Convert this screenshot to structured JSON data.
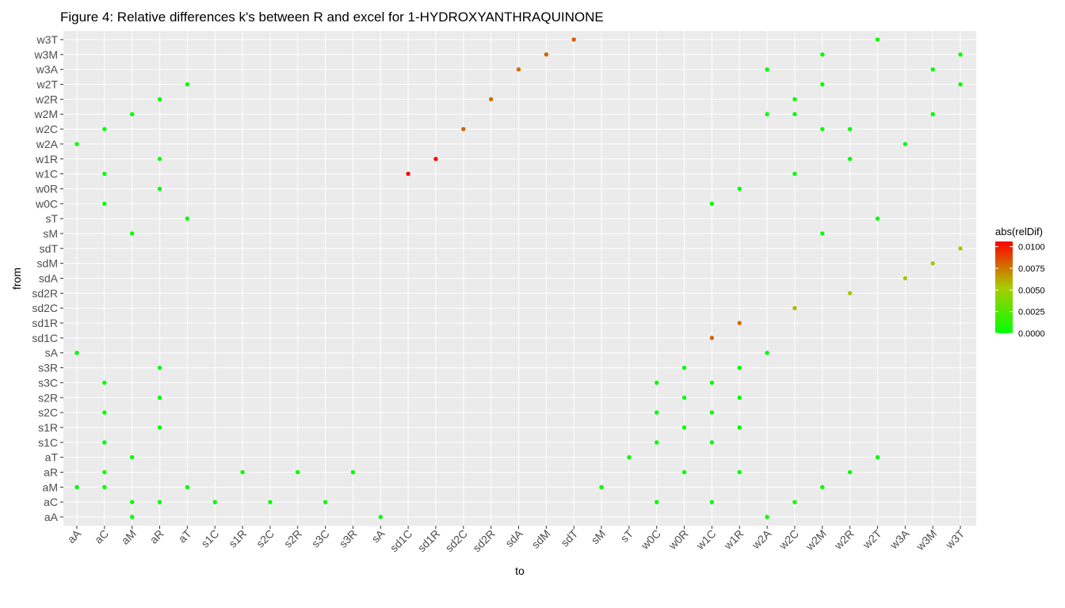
{
  "chart_data": {
    "type": "scatter",
    "title": "Figure 4: Relative differences k's between R and excel for 1-HYDROXYANTHRAQUINONE",
    "xlabel": "to",
    "ylabel": "from",
    "x_categories": [
      "aA",
      "aC",
      "aM",
      "aR",
      "aT",
      "s1C",
      "s1R",
      "s2C",
      "s2R",
      "s3C",
      "s3R",
      "sA",
      "sd1C",
      "sd1R",
      "sd2C",
      "sd2R",
      "sdA",
      "sdM",
      "sdT",
      "sM",
      "sT",
      "w0C",
      "w0R",
      "w1C",
      "w1R",
      "w2A",
      "w2C",
      "w2M",
      "w2R",
      "w2T",
      "w3A",
      "w3M",
      "w3T"
    ],
    "y_categories": [
      "aA",
      "aC",
      "aM",
      "aR",
      "aT",
      "s1C",
      "s1R",
      "s2C",
      "s2R",
      "s3C",
      "s3R",
      "sA",
      "sd1C",
      "sd1R",
      "sd2C",
      "sd2R",
      "sdA",
      "sdM",
      "sdT",
      "sM",
      "sT",
      "w0C",
      "w0R",
      "w1C",
      "w1R",
      "w2A",
      "w2C",
      "w2M",
      "w2R",
      "w2T",
      "w3A",
      "w3M",
      "w3T"
    ],
    "grid": true,
    "legend": {
      "title": "abs(relDif)",
      "position": "right",
      "ticks": [
        "0.0000",
        "0.0025",
        "0.0050",
        "0.0075",
        "0.0100"
      ],
      "tick_values": [
        0,
        0.0025,
        0.005,
        0.0075,
        0.01
      ],
      "range": [
        0,
        0.0106
      ],
      "low_color": "#00ff00",
      "mid_color": "#aacc00",
      "high_color": "#ff0000"
    },
    "points": [
      {
        "from": "w3T",
        "to": "sdT",
        "v": 0.0082
      },
      {
        "from": "w3T",
        "to": "w2T",
        "v": 0
      },
      {
        "from": "w3M",
        "to": "sdM",
        "v": 0.008
      },
      {
        "from": "w3M",
        "to": "w2M",
        "v": 0
      },
      {
        "from": "w3M",
        "to": "w3T",
        "v": 0
      },
      {
        "from": "w3A",
        "to": "sdA",
        "v": 0.0078
      },
      {
        "from": "w3A",
        "to": "w2A",
        "v": 0
      },
      {
        "from": "w3A",
        "to": "w3M",
        "v": 0
      },
      {
        "from": "w2T",
        "to": "aT",
        "v": 0
      },
      {
        "from": "w2T",
        "to": "w2M",
        "v": 0
      },
      {
        "from": "w2T",
        "to": "w3T",
        "v": 0
      },
      {
        "from": "w2R",
        "to": "aR",
        "v": 0
      },
      {
        "from": "w2R",
        "to": "sd2R",
        "v": 0.0078
      },
      {
        "from": "w2R",
        "to": "w2C",
        "v": 0
      },
      {
        "from": "w2M",
        "to": "aM",
        "v": 0
      },
      {
        "from": "w2M",
        "to": "w2A",
        "v": 0
      },
      {
        "from": "w2M",
        "to": "w2C",
        "v": 0
      },
      {
        "from": "w2M",
        "to": "w3M",
        "v": 0
      },
      {
        "from": "w2C",
        "to": "aC",
        "v": 0
      },
      {
        "from": "w2C",
        "to": "sd2C",
        "v": 0.008
      },
      {
        "from": "w2C",
        "to": "w2M",
        "v": 0
      },
      {
        "from": "w2C",
        "to": "w2R",
        "v": 0
      },
      {
        "from": "w2A",
        "to": "aA",
        "v": 0
      },
      {
        "from": "w2A",
        "to": "w3A",
        "v": 0
      },
      {
        "from": "w1R",
        "to": "aR",
        "v": 0
      },
      {
        "from": "w1R",
        "to": "sd1R",
        "v": 0.0103
      },
      {
        "from": "w1R",
        "to": "w2R",
        "v": 0
      },
      {
        "from": "w1C",
        "to": "aC",
        "v": 0
      },
      {
        "from": "w1C",
        "to": "sd1C",
        "v": 0.0106
      },
      {
        "from": "w1C",
        "to": "w2C",
        "v": 0
      },
      {
        "from": "w0R",
        "to": "aR",
        "v": 0
      },
      {
        "from": "w0R",
        "to": "w1R",
        "v": 0
      },
      {
        "from": "w0C",
        "to": "aC",
        "v": 0
      },
      {
        "from": "w0C",
        "to": "w1C",
        "v": 0
      },
      {
        "from": "sT",
        "to": "aT",
        "v": 0
      },
      {
        "from": "sT",
        "to": "w2T",
        "v": 0
      },
      {
        "from": "sM",
        "to": "aM",
        "v": 0
      },
      {
        "from": "sM",
        "to": "w2M",
        "v": 0
      },
      {
        "from": "sdT",
        "to": "w3T",
        "v": 0.0055
      },
      {
        "from": "sdM",
        "to": "w3M",
        "v": 0.0055
      },
      {
        "from": "sdA",
        "to": "w3A",
        "v": 0.0055
      },
      {
        "from": "sd2R",
        "to": "w2R",
        "v": 0.0055
      },
      {
        "from": "sd2C",
        "to": "w2C",
        "v": 0.0058
      },
      {
        "from": "sd1R",
        "to": "w1R",
        "v": 0.0078
      },
      {
        "from": "sd1C",
        "to": "w1C",
        "v": 0.008
      },
      {
        "from": "sA",
        "to": "aA",
        "v": 0
      },
      {
        "from": "sA",
        "to": "w2A",
        "v": 0
      },
      {
        "from": "s3R",
        "to": "aR",
        "v": 0
      },
      {
        "from": "s3R",
        "to": "w0R",
        "v": 0
      },
      {
        "from": "s3R",
        "to": "w1R",
        "v": 0
      },
      {
        "from": "s3C",
        "to": "aC",
        "v": 0
      },
      {
        "from": "s3C",
        "to": "w0C",
        "v": 0
      },
      {
        "from": "s3C",
        "to": "w1C",
        "v": 0
      },
      {
        "from": "s2R",
        "to": "aR",
        "v": 0
      },
      {
        "from": "s2R",
        "to": "w0R",
        "v": 0
      },
      {
        "from": "s2R",
        "to": "w1R",
        "v": 0
      },
      {
        "from": "s2C",
        "to": "aC",
        "v": 0
      },
      {
        "from": "s2C",
        "to": "w0C",
        "v": 0
      },
      {
        "from": "s2C",
        "to": "w1C",
        "v": 0
      },
      {
        "from": "s1R",
        "to": "aR",
        "v": 0
      },
      {
        "from": "s1R",
        "to": "w0R",
        "v": 0
      },
      {
        "from": "s1R",
        "to": "w1R",
        "v": 0
      },
      {
        "from": "s1C",
        "to": "aC",
        "v": 0
      },
      {
        "from": "s1C",
        "to": "w0C",
        "v": 0
      },
      {
        "from": "s1C",
        "to": "w1C",
        "v": 0
      },
      {
        "from": "aT",
        "to": "aM",
        "v": 0
      },
      {
        "from": "aT",
        "to": "sT",
        "v": 0
      },
      {
        "from": "aT",
        "to": "w2T",
        "v": 0
      },
      {
        "from": "aR",
        "to": "aC",
        "v": 0
      },
      {
        "from": "aR",
        "to": "s1R",
        "v": 0
      },
      {
        "from": "aR",
        "to": "s2R",
        "v": 0
      },
      {
        "from": "aR",
        "to": "s3R",
        "v": 0
      },
      {
        "from": "aR",
        "to": "w0R",
        "v": 0
      },
      {
        "from": "aR",
        "to": "w1R",
        "v": 0
      },
      {
        "from": "aR",
        "to": "w2R",
        "v": 0
      },
      {
        "from": "aM",
        "to": "aA",
        "v": 0
      },
      {
        "from": "aM",
        "to": "aC",
        "v": 0
      },
      {
        "from": "aM",
        "to": "aT",
        "v": 0
      },
      {
        "from": "aM",
        "to": "sM",
        "v": 0
      },
      {
        "from": "aM",
        "to": "w2M",
        "v": 0
      },
      {
        "from": "aC",
        "to": "aM",
        "v": 0
      },
      {
        "from": "aC",
        "to": "aR",
        "v": 0
      },
      {
        "from": "aC",
        "to": "s1C",
        "v": 0
      },
      {
        "from": "aC",
        "to": "s2C",
        "v": 0
      },
      {
        "from": "aC",
        "to": "s3C",
        "v": 0
      },
      {
        "from": "aC",
        "to": "w0C",
        "v": 0
      },
      {
        "from": "aC",
        "to": "w1C",
        "v": 0
      },
      {
        "from": "aC",
        "to": "w2C",
        "v": 0
      },
      {
        "from": "aA",
        "to": "aM",
        "v": 0
      },
      {
        "from": "aA",
        "to": "sA",
        "v": 0
      },
      {
        "from": "aA",
        "to": "w2A",
        "v": 0
      }
    ]
  }
}
